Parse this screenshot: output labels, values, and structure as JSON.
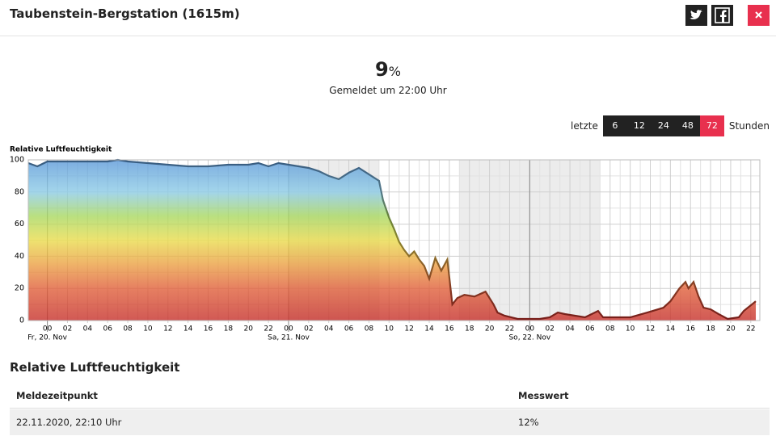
{
  "header": {
    "title": "Taubenstein-Bergstation (1615m)"
  },
  "current": {
    "value": "9",
    "unit": "%",
    "subtitle": "Gemeldet um 22:00 Uhr"
  },
  "range_selector": {
    "prefix": "letzte",
    "options": [
      "6",
      "12",
      "24",
      "48",
      "72"
    ],
    "active": 4,
    "suffix": "Stunden"
  },
  "chart_data": {
    "type": "area",
    "y_label": "Relative Luftfeuchtigkeit",
    "x": [
      -1.9,
      -1,
      0,
      2,
      4,
      6,
      7,
      8,
      10,
      12,
      14,
      16,
      18,
      20,
      21,
      22,
      23,
      24,
      25,
      26,
      27,
      28,
      29,
      30,
      31,
      32,
      32.5,
      33,
      33.4,
      34,
      34.5,
      35,
      35.5,
      36,
      36.5,
      37,
      37.5,
      38,
      38.6,
      39.2,
      39.8,
      40.3,
      40.8,
      41.5,
      42.5,
      43.6,
      44.4,
      44.8,
      45.5,
      46.8,
      48,
      49,
      50,
      50.8,
      51.5,
      52.5,
      53.5,
      54.8,
      55.3,
      56.5,
      58,
      59.7,
      61.3,
      62,
      62.9,
      63.5,
      63.8,
      64.3,
      64.8,
      65.3,
      66,
      66.8,
      67.7,
      68.8,
      69.3,
      70.1,
      70.5
    ],
    "values": [
      98,
      96,
      99,
      99,
      99,
      99,
      100,
      99,
      98,
      97,
      96,
      96,
      97,
      97,
      98,
      96,
      98,
      97,
      96,
      95,
      93,
      90,
      88,
      92,
      95,
      91,
      89,
      87,
      75,
      64,
      57,
      49,
      44,
      40,
      43,
      38,
      34,
      26,
      39,
      31,
      38,
      10,
      14,
      16,
      15,
      18,
      10,
      5,
      3,
      1,
      1,
      1,
      2,
      5,
      4,
      3,
      2,
      6,
      2,
      2,
      2,
      5,
      8,
      12,
      20,
      24,
      20,
      24,
      15,
      8,
      7,
      4,
      1,
      2,
      6,
      10,
      12
    ],
    "xlim": [
      -1.9,
      70.9
    ],
    "ylim": [
      0,
      100
    ],
    "yticks": [
      0,
      20,
      40,
      60,
      80,
      100
    ],
    "xticks": [
      {
        "value": 0,
        "label": "00"
      },
      {
        "value": 2,
        "label": "02"
      },
      {
        "value": 4,
        "label": "04"
      },
      {
        "value": 6,
        "label": "06"
      },
      {
        "value": 8,
        "label": "08"
      },
      {
        "value": 10,
        "label": "10"
      },
      {
        "value": 12,
        "label": "12"
      },
      {
        "value": 14,
        "label": "14"
      },
      {
        "value": 16,
        "label": "16"
      },
      {
        "value": 18,
        "label": "18"
      },
      {
        "value": 20,
        "label": "20"
      },
      {
        "value": 22,
        "label": "22"
      },
      {
        "value": 24,
        "label": "00"
      },
      {
        "value": 26,
        "label": "02"
      },
      {
        "value": 28,
        "label": "04"
      },
      {
        "value": 30,
        "label": "06"
      },
      {
        "value": 32,
        "label": "08"
      },
      {
        "value": 34,
        "label": "10"
      },
      {
        "value": 36,
        "label": "12"
      },
      {
        "value": 38,
        "label": "14"
      },
      {
        "value": 40,
        "label": "16"
      },
      {
        "value": 42,
        "label": "18"
      },
      {
        "value": 44,
        "label": "20"
      },
      {
        "value": 46,
        "label": "22"
      },
      {
        "value": 48,
        "label": "00"
      },
      {
        "value": 50,
        "label": "02"
      },
      {
        "value": 52,
        "label": "04"
      },
      {
        "value": 54,
        "label": "06"
      },
      {
        "value": 56,
        "label": "08"
      },
      {
        "value": 58,
        "label": "10"
      },
      {
        "value": 60,
        "label": "12"
      },
      {
        "value": 62,
        "label": "14"
      },
      {
        "value": 64,
        "label": "16"
      },
      {
        "value": 66,
        "label": "18"
      },
      {
        "value": 68,
        "label": "20"
      },
      {
        "value": 70,
        "label": "22"
      }
    ],
    "day_labels": [
      {
        "value": 0,
        "label": "Fr, 20. Nov"
      },
      {
        "value": 24,
        "label": "Sa, 21. Nov"
      },
      {
        "value": 48,
        "label": "So, 22. Nov"
      }
    ],
    "night_bands": [
      [
        24,
        33
      ],
      [
        41,
        55
      ]
    ],
    "grid": true,
    "color_scale": [
      {
        "value": 0,
        "color": "#c62f2a"
      },
      {
        "value": 20,
        "color": "#e0603a"
      },
      {
        "value": 35,
        "color": "#eba043"
      },
      {
        "value": 50,
        "color": "#e9dc4c"
      },
      {
        "value": 65,
        "color": "#a8d860"
      },
      {
        "value": 80,
        "color": "#8ccbe6"
      },
      {
        "value": 100,
        "color": "#5b98d8"
      }
    ]
  },
  "table": {
    "title": "Relative Luftfeuchtigkeit",
    "columns": [
      "Meldezeitpunkt",
      "Messwert"
    ],
    "rows": [
      [
        "22.11.2020, 22:10 Uhr",
        "12%"
      ]
    ]
  }
}
